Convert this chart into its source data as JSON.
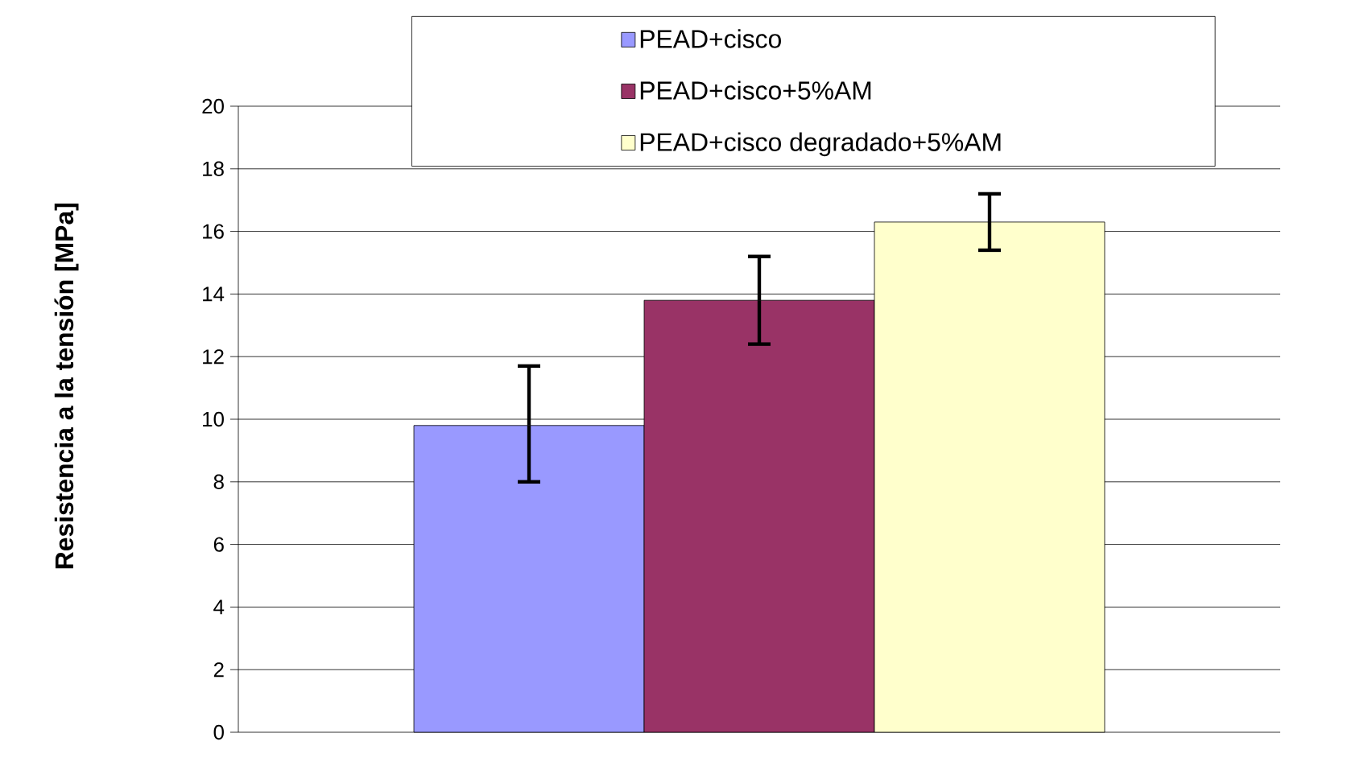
{
  "chart_data": {
    "type": "bar",
    "ylabel": "Resistencia a la tensión [MPa]",
    "categories": [
      null
    ],
    "series": [
      {
        "name": "PEAD+cisco",
        "color": "#9999ff",
        "values": [
          9.8
        ],
        "errors": [
          [
            8.0,
            11.7
          ]
        ]
      },
      {
        "name": "PEAD+cisco+5%AM",
        "color": "#993366",
        "values": [
          13.8
        ],
        "errors": [
          [
            12.4,
            15.2
          ]
        ]
      },
      {
        "name": "PEAD+cisco degradado+5%AM",
        "color": "#ffffcc",
        "values": [
          16.3
        ],
        "errors": [
          [
            15.4,
            17.2
          ]
        ]
      }
    ],
    "ylim": [
      0,
      20
    ],
    "yticks": [
      0,
      2,
      4,
      6,
      8,
      10,
      12,
      14,
      16,
      18,
      20
    ],
    "grid": "y",
    "legend": "top"
  }
}
